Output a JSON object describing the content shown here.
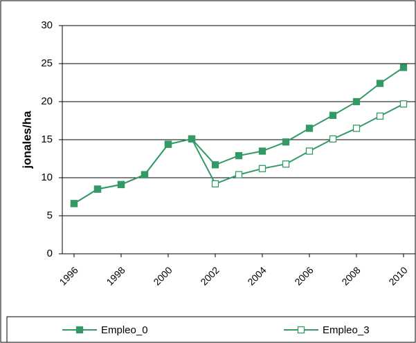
{
  "chart_data": {
    "type": "line",
    "x": [
      1996,
      1997,
      1998,
      1999,
      2000,
      2001,
      2002,
      2003,
      2004,
      2005,
      2006,
      2007,
      2008,
      2009,
      2010
    ],
    "xlim": [
      1995.5,
      2010.5
    ],
    "xticks": [
      1996,
      1998,
      2000,
      2002,
      2004,
      2006,
      2008,
      2010
    ],
    "ylabel": "jonales/ha",
    "ylim": [
      0,
      30
    ],
    "yticks": [
      0,
      5,
      10,
      15,
      20,
      25,
      30
    ],
    "grid": true,
    "legend": "bottom",
    "series": [
      {
        "name": "Empleo_0",
        "color": "#339966",
        "filled": true,
        "values": [
          6.6,
          8.5,
          9.1,
          10.4,
          14.4,
          15.1,
          11.7,
          12.9,
          13.5,
          14.7,
          16.5,
          18.2,
          20.0,
          22.4,
          24.5
        ]
      },
      {
        "name": "Empleo_3",
        "color": "#339966",
        "filled": false,
        "values": [
          6.6,
          8.5,
          9.1,
          10.4,
          14.4,
          15.1,
          9.2,
          10.4,
          11.2,
          11.8,
          13.5,
          15.1,
          16.5,
          18.1,
          19.7
        ]
      }
    ]
  }
}
